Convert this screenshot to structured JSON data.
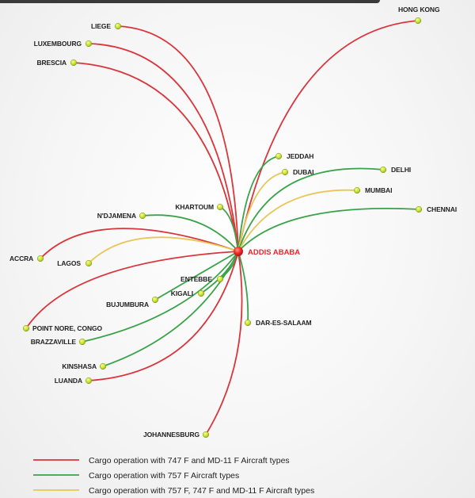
{
  "hub": {
    "name": "ADDIS ABABA",
    "color": "#e8262b"
  },
  "route_colors": {
    "747_md11": "#d9363c",
    "757": "#3aa34a",
    "mixed": "#e8c65a"
  },
  "destinations": [
    {
      "id": "hong-kong",
      "name": "HONG KONG",
      "route": "747_md11"
    },
    {
      "id": "liege",
      "name": "LIEGE",
      "route": "747_md11"
    },
    {
      "id": "luxembourg",
      "name": "LUXEMBOURG",
      "route": "747_md11"
    },
    {
      "id": "brescia",
      "name": "BRESCIA",
      "route": "747_md11"
    },
    {
      "id": "jeddah",
      "name": "JEDDAH",
      "route": "757"
    },
    {
      "id": "dubai",
      "name": "DUBAI",
      "route": "mixed"
    },
    {
      "id": "delhi",
      "name": "DELHI",
      "route": "757"
    },
    {
      "id": "mumbai",
      "name": "MUMBAI",
      "route": "mixed"
    },
    {
      "id": "chennai",
      "name": "CHENNAI",
      "route": "757"
    },
    {
      "id": "khartoum",
      "name": "KHARTOUM",
      "route": "757"
    },
    {
      "id": "ndjamena",
      "name": "N'DJAMENA",
      "route": "757"
    },
    {
      "id": "accra",
      "name": "ACCRA",
      "route": "747_md11"
    },
    {
      "id": "lagos",
      "name": "LAGOS",
      "route": "mixed"
    },
    {
      "id": "entebbe",
      "name": "ENTEBBE",
      "route": "757"
    },
    {
      "id": "kigali",
      "name": "KIGALI",
      "route": "757"
    },
    {
      "id": "bujumbura",
      "name": "BUJUMBURA",
      "route": "757"
    },
    {
      "id": "dar-es-salaam",
      "name": "DAR-ES-SALAAM",
      "route": "757"
    },
    {
      "id": "point-noire",
      "name": "POINT NORE, CONGO",
      "route": "747_md11"
    },
    {
      "id": "brazzaville",
      "name": "BRAZZAVILLE",
      "route": "757"
    },
    {
      "id": "kinshasa",
      "name": "KINSHASA",
      "route": "757"
    },
    {
      "id": "luanda",
      "name": "LUANDA",
      "route": "747_md11"
    },
    {
      "id": "johannesburg",
      "name": "JOHANNESBURG",
      "route": "747_md11"
    }
  ],
  "legend": [
    {
      "route": "747_md11",
      "label": "Cargo operation with 747 F and MD-11 F Aircraft types"
    },
    {
      "route": "757",
      "label": "Cargo operation with 757 F Aircraft types"
    },
    {
      "route": "mixed",
      "label": "Cargo operation with 757 F, 747 F and MD-11 F Aircraft types"
    }
  ]
}
